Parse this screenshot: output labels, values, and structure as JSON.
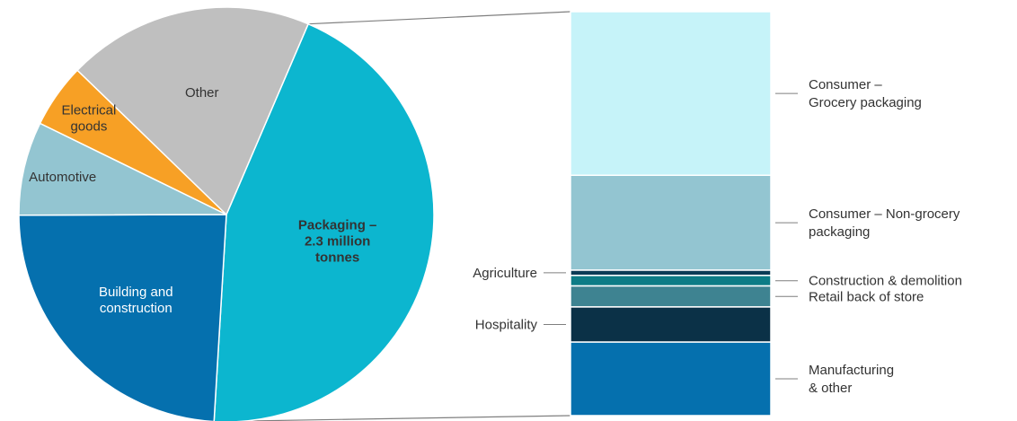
{
  "chart_data": [
    {
      "type": "pie",
      "slices": [
        {
          "label": "Packaging – 2.3 million tonnes",
          "lines": [
            "Packaging –",
            "2.3 million",
            "tonnes"
          ],
          "value": 44.5,
          "color": "#0cb6cf",
          "bold": true,
          "text_color": "#333333"
        },
        {
          "label": "Building and construction",
          "lines": [
            "Building and",
            "construction"
          ],
          "value": 24.0,
          "color": "#0570ae",
          "bold": false,
          "text_color": "#ffffff"
        },
        {
          "label": "Automotive",
          "lines": [
            "Automotive"
          ],
          "value": 7.3,
          "color": "#93c5d1",
          "bold": false,
          "text_color": "#333333"
        },
        {
          "label": "Electrical goods",
          "lines": [
            "Electrical",
            "goods"
          ],
          "value": 5.0,
          "color": "#f7a025",
          "bold": false,
          "text_color": "#333333"
        },
        {
          "label": "Other",
          "lines": [
            "Other"
          ],
          "value": 19.2,
          "color": "#bfbfbf",
          "bold": false,
          "text_color": "#333333"
        }
      ]
    },
    {
      "type": "bar",
      "stacked": true,
      "parent": "Packaging – 2.3 million tonnes",
      "segments": [
        {
          "label": "Consumer – Grocery packaging",
          "lines": [
            "Consumer –",
            "Grocery packaging"
          ],
          "value": 40.5,
          "color": "#c6f3f9",
          "side": "right"
        },
        {
          "label": "Consumer – Non-grocery packaging",
          "lines": [
            "Consumer – Non-grocery",
            "packaging"
          ],
          "value": 23.5,
          "color": "#93c5d1",
          "side": "right"
        },
        {
          "label": "Agriculture",
          "lines": [
            "Agriculture"
          ],
          "value": 1.3,
          "color": "#0b3b55",
          "side": "left"
        },
        {
          "label": "Construction & demolition",
          "lines": [
            "Construction & demolition"
          ],
          "value": 2.6,
          "color": "#0d7c86",
          "side": "right"
        },
        {
          "label": "Retail back of store",
          "lines": [
            "Retail back of store"
          ],
          "value": 5.2,
          "color": "#3e8391",
          "side": "right"
        },
        {
          "label": "Hospitality",
          "lines": [
            "Hospitality"
          ],
          "value": 8.7,
          "color": "#0b3147",
          "side": "left"
        },
        {
          "label": "Manufacturing & other",
          "lines": [
            "Manufacturing",
            "& other"
          ],
          "value": 18.2,
          "color": "#0570ae",
          "side": "right"
        }
      ]
    }
  ]
}
